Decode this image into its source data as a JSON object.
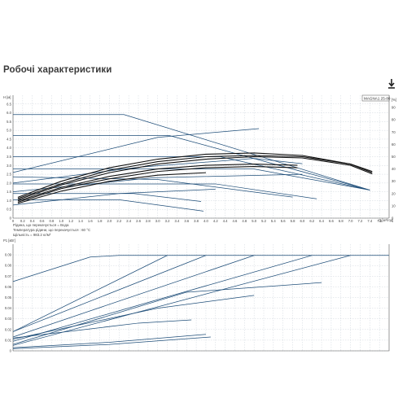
{
  "page_title": "Робочі характеристики",
  "icons": {
    "download": "download-icon"
  },
  "chart_data": [
    {
      "type": "line",
      "name": "head-curve",
      "legend": "MAGNA1 25-80",
      "xlabel": "Q [м³/год]",
      "ylabel": "H [м]",
      "y2label": "[%]",
      "xlim": [
        0,
        7.8
      ],
      "ylim": [
        0,
        7.0
      ],
      "y2lim": [
        0,
        100
      ],
      "x_ticks": [
        "0",
        "0.2",
        "0.4",
        "0.6",
        "0.8",
        "1.0",
        "1.2",
        "1.4",
        "1.6",
        "1.8",
        "2.0",
        "2.2",
        "2.4",
        "2.6",
        "2.8",
        "3.0",
        "3.2",
        "3.4",
        "3.6",
        "3.8",
        "4.0",
        "4.2",
        "4.4",
        "4.6",
        "4.8",
        "5.0",
        "5.2",
        "5.4",
        "5.6",
        "5.8",
        "6.0",
        "6.2",
        "6.4",
        "6.6",
        "6.8",
        "7.0",
        "7.2",
        "7.4",
        "7.6"
      ],
      "y_ticks": [
        "0",
        "0.5",
        "1.0",
        "1.5",
        "2.0",
        "2.5",
        "3.0",
        "3.5",
        "4.0",
        "4.5",
        "5.0",
        "5.5",
        "6.0",
        "6.5"
      ],
      "y2_ticks": [
        "0",
        "10",
        "20",
        "30",
        "40",
        "50",
        "60",
        "70",
        "80",
        "90"
      ],
      "grid": true,
      "series": [
        {
          "kind": "pump",
          "x": [
            0,
            2.3,
            7.4
          ],
          "y": [
            5.9,
            5.9,
            1.6
          ]
        },
        {
          "kind": "pump",
          "x": [
            0,
            3.25,
            7.4
          ],
          "y": [
            4.7,
            4.7,
            1.6
          ]
        },
        {
          "kind": "pump",
          "x": [
            0,
            4.3,
            7.4
          ],
          "y": [
            3.5,
            3.5,
            1.6
          ]
        },
        {
          "kind": "pump",
          "x": [
            0,
            5.0,
            7.4
          ],
          "y": [
            2.8,
            2.8,
            1.6
          ]
        },
        {
          "kind": "pump",
          "x": [
            0,
            4.2,
            6.3
          ],
          "y": [
            1.95,
            1.95,
            1.1
          ]
        },
        {
          "kind": "pump",
          "x": [
            0,
            2.5,
            3.9
          ],
          "y": [
            1.4,
            1.4,
            0.95
          ]
        },
        {
          "kind": "pump",
          "x": [
            0,
            2.2,
            3.95
          ],
          "y": [
            1.05,
            1.05,
            0.4
          ]
        },
        {
          "kind": "pump",
          "x": [
            0,
            3.0,
            5.8
          ],
          "y": [
            2.35,
            2.2,
            1.2
          ]
        },
        {
          "kind": "system",
          "x": [
            0,
            3.0,
            5.1
          ],
          "y": [
            2.6,
            4.6,
            5.1
          ]
        },
        {
          "kind": "system",
          "x": [
            0,
            2.6,
            5.0,
            6.0
          ],
          "y": [
            2.0,
            2.9,
            3.4,
            3.1
          ]
        },
        {
          "kind": "system",
          "x": [
            0,
            2.9,
            6.0
          ],
          "y": [
            1.5,
            2.3,
            2.5
          ]
        },
        {
          "kind": "system",
          "x": [
            0,
            2.2,
            4.2
          ],
          "y": [
            0.75,
            1.4,
            1.65
          ]
        },
        {
          "kind": "efficiency",
          "x": [
            0.1,
            1.0,
            2.0,
            3.0,
            4.0,
            5.0,
            6.0,
            7.0,
            7.45
          ],
          "y": [
            17,
            30,
            41,
            48,
            52,
            53,
            51,
            44,
            38
          ]
        },
        {
          "kind": "efficiency",
          "x": [
            0.1,
            1.0,
            2.0,
            3.0,
            4.0,
            5.0,
            6.0,
            7.0,
            7.45
          ],
          "y": [
            16,
            28,
            39,
            46,
            50,
            51,
            50,
            44,
            37
          ]
        },
        {
          "kind": "efficiency",
          "x": [
            0.1,
            1.0,
            2.0,
            3.0,
            4.0,
            5.0,
            6.0,
            7.0,
            7.45
          ],
          "y": [
            15,
            27,
            37,
            44,
            48,
            50,
            49,
            43,
            36
          ]
        },
        {
          "kind": "efficiency",
          "x": [
            0.1,
            1.0,
            2.0,
            3.0,
            4.0,
            5.0,
            5.9
          ],
          "y": [
            14,
            25,
            34,
            40,
            43,
            44,
            43
          ]
        },
        {
          "kind": "efficiency",
          "x": [
            0.1,
            1.0,
            2.0,
            3.0,
            4.0,
            5.0,
            5.9
          ],
          "y": [
            13,
            24,
            32,
            38,
            41,
            42,
            41
          ]
        },
        {
          "kind": "efficiency",
          "x": [
            0.1,
            1.0,
            2.0,
            3.0,
            4.0
          ],
          "y": [
            12,
            22,
            30,
            35,
            37
          ]
        }
      ],
      "notes": [
        "Рідина, що перекачується = Вода",
        "Температура рідини, що перекачується : 60 °C",
        "Щільність = 983.2 кг/м³"
      ]
    },
    {
      "type": "line",
      "name": "power-curve",
      "xlabel": "",
      "ylabel": "P1 [кВт]",
      "xlim": [
        0,
        7.8
      ],
      "ylim": [
        0,
        0.1
      ],
      "y_ticks": [
        "0",
        "0.01",
        "0.02",
        "0.03",
        "0.04",
        "0.05",
        "0.06",
        "0.07",
        "0.08",
        "0.09"
      ],
      "grid": true,
      "series": [
        {
          "x": [
            0,
            1.6,
            2.2,
            7.8
          ],
          "y": [
            0.065,
            0.088,
            0.0895,
            0.0895
          ]
        },
        {
          "x": [
            0,
            3.2
          ],
          "y": [
            0.018,
            0.0895
          ]
        },
        {
          "x": [
            0,
            4.0
          ],
          "y": [
            0.018,
            0.0895
          ]
        },
        {
          "x": [
            0,
            5.0
          ],
          "y": [
            0.013,
            0.0895
          ]
        },
        {
          "x": [
            0,
            6.2
          ],
          "y": [
            0.009,
            0.0895
          ]
        },
        {
          "x": [
            0,
            7.0
          ],
          "y": [
            0.005,
            0.0895
          ]
        },
        {
          "x": [
            0,
            3.6,
            6.4
          ],
          "y": [
            0.006,
            0.055,
            0.064
          ]
        },
        {
          "x": [
            0,
            3.0,
            5.0
          ],
          "y": [
            0.011,
            0.04,
            0.052
          ]
        },
        {
          "x": [
            0,
            2.6,
            3.7
          ],
          "y": [
            0.012,
            0.026,
            0.029
          ]
        },
        {
          "x": [
            0,
            2.0,
            4.0
          ],
          "y": [
            0.003,
            0.008,
            0.0155
          ]
        },
        {
          "x": [
            0,
            2.0,
            4.1
          ],
          "y": [
            0.002,
            0.006,
            0.013
          ]
        }
      ]
    }
  ],
  "colors": {
    "curve": "#1f4e79",
    "efficiency": "#111111",
    "grid": "#cfd6dd",
    "axis": "#555555"
  }
}
